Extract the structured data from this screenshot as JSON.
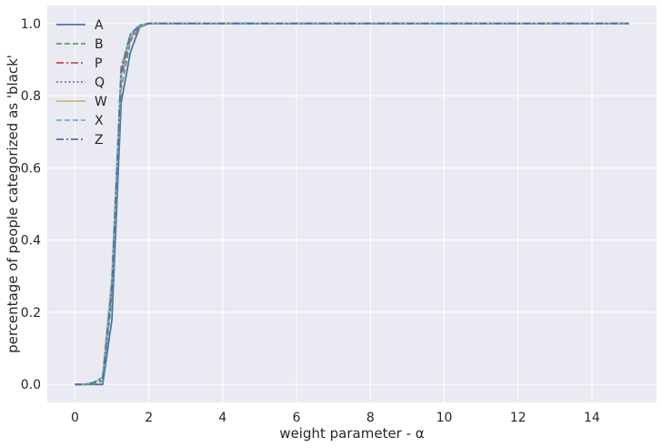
{
  "chart_data": {
    "type": "line",
    "xlabel": "weight parameter - α",
    "ylabel": "percentage of people categorized as 'black'",
    "xlim": [
      -0.75,
      15.75
    ],
    "ylim": [
      -0.05,
      1.05
    ],
    "x_ticks": [
      0,
      2,
      4,
      6,
      8,
      10,
      12,
      14
    ],
    "x_tick_labels": [
      "0",
      "2",
      "4",
      "6",
      "8",
      "10",
      "12",
      "14"
    ],
    "y_ticks": [
      0.0,
      0.2,
      0.4,
      0.6,
      0.8,
      1.0
    ],
    "y_tick_labels": [
      "0.0",
      "0.2",
      "0.4",
      "0.6",
      "0.8",
      "1.0"
    ],
    "grid": true,
    "legend_position": "upper-left",
    "x": [
      0,
      0.25,
      0.5,
      0.75,
      1.0,
      1.25,
      1.5,
      1.75,
      2.0,
      2.25,
      2.5,
      3,
      4,
      5,
      6,
      7,
      8,
      9,
      10,
      11,
      12,
      13,
      14,
      15
    ],
    "series": [
      {
        "name": "A",
        "color": "#4c72b0",
        "dash": "solid",
        "values": [
          0,
          0,
          0,
          0,
          0.18,
          0.78,
          0.92,
          0.99,
          1.0,
          1.0,
          1.0,
          1.0,
          1.0,
          1.0,
          1.0,
          1.0,
          1.0,
          1.0,
          1.0,
          1.0,
          1.0,
          1.0,
          1.0,
          1.0
        ]
      },
      {
        "name": "B",
        "color": "#55a868",
        "dash": "dashed",
        "values": [
          0,
          0,
          0,
          0.01,
          0.24,
          0.82,
          0.95,
          0.99,
          1.0,
          1.0,
          1.0,
          1.0,
          1.0,
          1.0,
          1.0,
          1.0,
          1.0,
          1.0,
          1.0,
          1.0,
          1.0,
          1.0,
          1.0,
          1.0
        ]
      },
      {
        "name": "P",
        "color": "#c44e52",
        "dash": "dashdot",
        "values": [
          0,
          0,
          0.005,
          0.02,
          0.28,
          0.85,
          0.96,
          0.995,
          1.0,
          1.0,
          1.0,
          1.0,
          1.0,
          1.0,
          1.0,
          1.0,
          1.0,
          1.0,
          1.0,
          1.0,
          1.0,
          1.0,
          1.0,
          1.0
        ]
      },
      {
        "name": "Q",
        "color": "#8172b2",
        "dash": "dotted",
        "values": [
          0,
          0,
          0.005,
          0.015,
          0.26,
          0.86,
          0.96,
          0.995,
          1.0,
          1.0,
          1.0,
          1.0,
          1.0,
          1.0,
          1.0,
          1.0,
          1.0,
          1.0,
          1.0,
          1.0,
          1.0,
          1.0,
          1.0,
          1.0
        ]
      },
      {
        "name": "W",
        "color": "#ccb974",
        "dash": "solid",
        "values": [
          0,
          0,
          0.005,
          0.02,
          0.3,
          0.87,
          0.97,
          0.995,
          1.0,
          1.0,
          1.0,
          1.0,
          1.0,
          1.0,
          1.0,
          1.0,
          1.0,
          1.0,
          1.0,
          1.0,
          1.0,
          1.0,
          1.0,
          1.0
        ]
      },
      {
        "name": "X",
        "color": "#64b5cd",
        "dash": "dashed",
        "values": [
          0,
          0,
          0.005,
          0.02,
          0.29,
          0.88,
          0.97,
          0.995,
          1.0,
          1.0,
          1.0,
          1.0,
          1.0,
          1.0,
          1.0,
          1.0,
          1.0,
          1.0,
          1.0,
          1.0,
          1.0,
          1.0,
          1.0,
          1.0
        ]
      },
      {
        "name": "Z",
        "color": "#4c72b0",
        "dash": "dashdot",
        "values": [
          0,
          0,
          0.005,
          0.015,
          0.27,
          0.87,
          0.97,
          0.995,
          1.0,
          1.0,
          1.0,
          1.0,
          1.0,
          1.0,
          1.0,
          1.0,
          1.0,
          1.0,
          1.0,
          1.0,
          1.0,
          1.0,
          1.0,
          1.0
        ]
      }
    ]
  }
}
